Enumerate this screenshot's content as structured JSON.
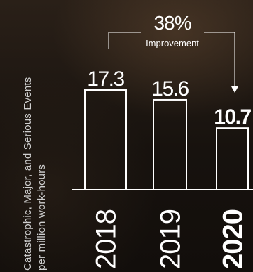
{
  "chart_data": {
    "type": "bar",
    "categories": [
      "2018",
      "2019",
      "2020"
    ],
    "values": [
      17.3,
      15.6,
      10.7
    ],
    "ylabel_line1": "Catastrophic, Major, and Serious Events",
    "ylabel_line2": "per million work-hours",
    "ylim": [
      0,
      17.3
    ],
    "highlight_category": "2020",
    "annotation": {
      "percent": "38%",
      "text": "Improvement",
      "from": "2018",
      "to": "2020"
    },
    "grid": false,
    "colors": {
      "bar_stroke": "#ffffff",
      "bar_fill": "none",
      "text": "#ffffff",
      "label": "#cfcfcf"
    }
  }
}
